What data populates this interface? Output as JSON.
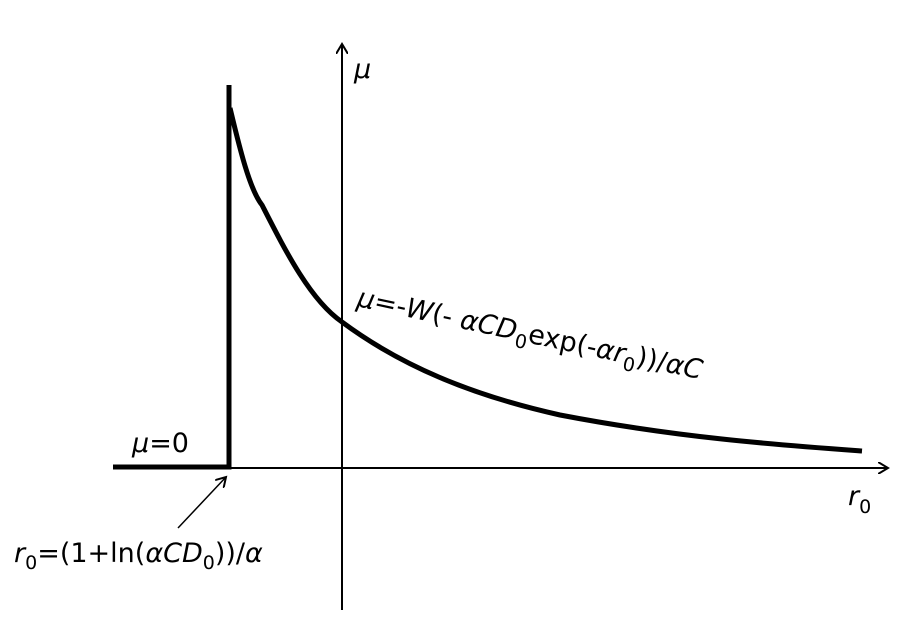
{
  "axes": {
    "y_label": "μ",
    "x_label": [
      "r",
      "0"
    ]
  },
  "annotations": {
    "zero": [
      "μ",
      "=0"
    ],
    "curve": [
      "μ",
      "=-",
      "W",
      "(- ",
      "αCD",
      "0",
      "exp(-",
      "αr",
      "0",
      "))/",
      "αC"
    ],
    "threshold": [
      "r",
      "0",
      "=(1+ln(",
      "αCD",
      "0",
      "))/",
      "α"
    ]
  }
}
